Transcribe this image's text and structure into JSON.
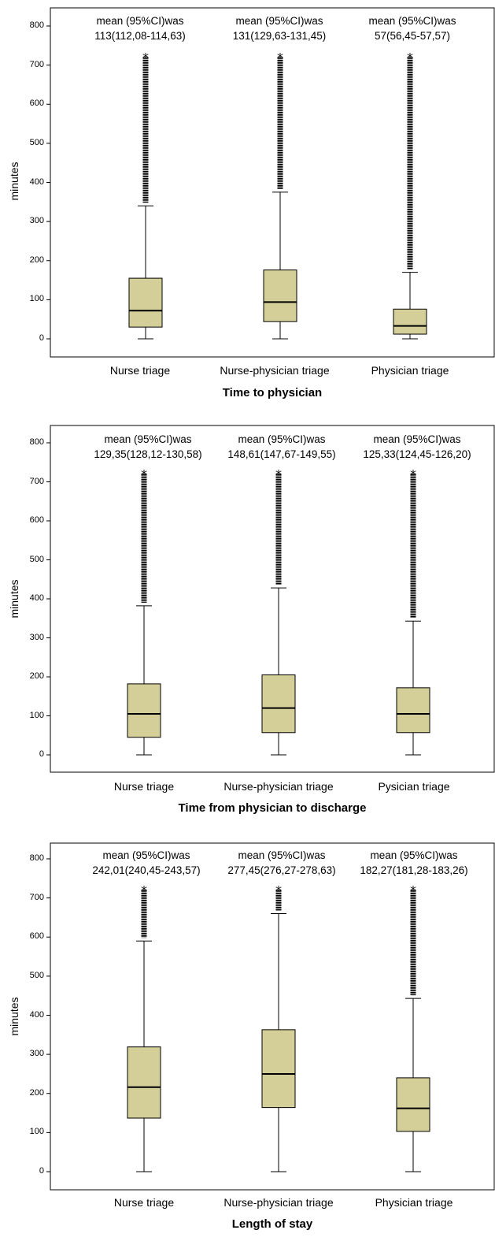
{
  "colors": {
    "box_fill": "#d4cf99",
    "stroke": "#000000",
    "background": "#ffffff"
  },
  "chart_data": [
    {
      "type": "box",
      "xlabel": "Time to physician",
      "ylabel": "minutes",
      "ylim": [
        0,
        800
      ],
      "yticks": [
        "0",
        "100",
        "200",
        "300",
        "400",
        "500",
        "600",
        "700",
        "800"
      ],
      "categories": [
        "Nurse triage",
        "Nurse-physician triage",
        "Physician triage"
      ],
      "annotations": [
        {
          "line1": "mean (95%CI)was",
          "line2": "113(112,08-114,63)"
        },
        {
          "line1": "mean (95%CI)was",
          "line2": "131(129,63-131,45)"
        },
        {
          "line1": "mean (95%CI)was",
          "line2": "57(56,45-57,57)"
        }
      ],
      "boxes": [
        {
          "whisker_low": 0,
          "q1": 30,
          "median": 72,
          "q3": 155,
          "whisker_high": 340,
          "outlier_max": 720
        },
        {
          "whisker_low": 0,
          "q1": 44,
          "median": 94,
          "q3": 176,
          "whisker_high": 375,
          "outlier_max": 720
        },
        {
          "whisker_low": 0,
          "q1": 12,
          "median": 33,
          "q3": 76,
          "whisker_high": 170,
          "outlier_max": 720
        }
      ]
    },
    {
      "type": "box",
      "xlabel": "Time from physician to discharge",
      "ylabel": "minutes",
      "ylim": [
        0,
        800
      ],
      "yticks": [
        "0",
        "100",
        "200",
        "300",
        "400",
        "500",
        "600",
        "700",
        "800"
      ],
      "categories": [
        "Nurse triage",
        "Nurse-physician triage",
        "Pysician triage"
      ],
      "annotations": [
        {
          "line1": "mean (95%CI)was",
          "line2": "129,35(128,12-130,58)"
        },
        {
          "line1": "mean (95%CI)was",
          "line2": "148,61(147,67-149,55)"
        },
        {
          "line1": "mean (95%CI)was",
          "line2": "125,33(124,45-126,20)"
        }
      ],
      "boxes": [
        {
          "whisker_low": 0,
          "q1": 45,
          "median": 105,
          "q3": 182,
          "whisker_high": 382,
          "outlier_max": 720
        },
        {
          "whisker_low": 0,
          "q1": 57,
          "median": 120,
          "q3": 205,
          "whisker_high": 428,
          "outlier_max": 720
        },
        {
          "whisker_low": 0,
          "q1": 57,
          "median": 105,
          "q3": 172,
          "whisker_high": 343,
          "outlier_max": 720
        }
      ]
    },
    {
      "type": "box",
      "xlabel": "Length of stay",
      "ylabel": "minutes",
      "ylim": [
        0,
        800
      ],
      "yticks": [
        "0",
        "100",
        "200",
        "300",
        "400",
        "500",
        "600",
        "700",
        "800"
      ],
      "categories": [
        "Nurse triage",
        "Nurse-physician triage",
        "Physician triage"
      ],
      "annotations": [
        {
          "line1": "mean (95%CI)was",
          "line2": "242,01(240,45-243,57)"
        },
        {
          "line1": "mean (95%CI)was",
          "line2": "277,45(276,27-278,63)"
        },
        {
          "line1": "mean (95%CI)was",
          "line2": "182,27(181,28-183,26)"
        }
      ],
      "boxes": [
        {
          "whisker_low": 0,
          "q1": 137,
          "median": 216,
          "q3": 319,
          "whisker_high": 590,
          "outlier_max": 720
        },
        {
          "whisker_low": 0,
          "q1": 164,
          "median": 250,
          "q3": 363,
          "whisker_high": 660,
          "outlier_max": 720
        },
        {
          "whisker_low": 0,
          "q1": 103,
          "median": 162,
          "q3": 240,
          "whisker_high": 443,
          "outlier_max": 720
        }
      ]
    }
  ]
}
